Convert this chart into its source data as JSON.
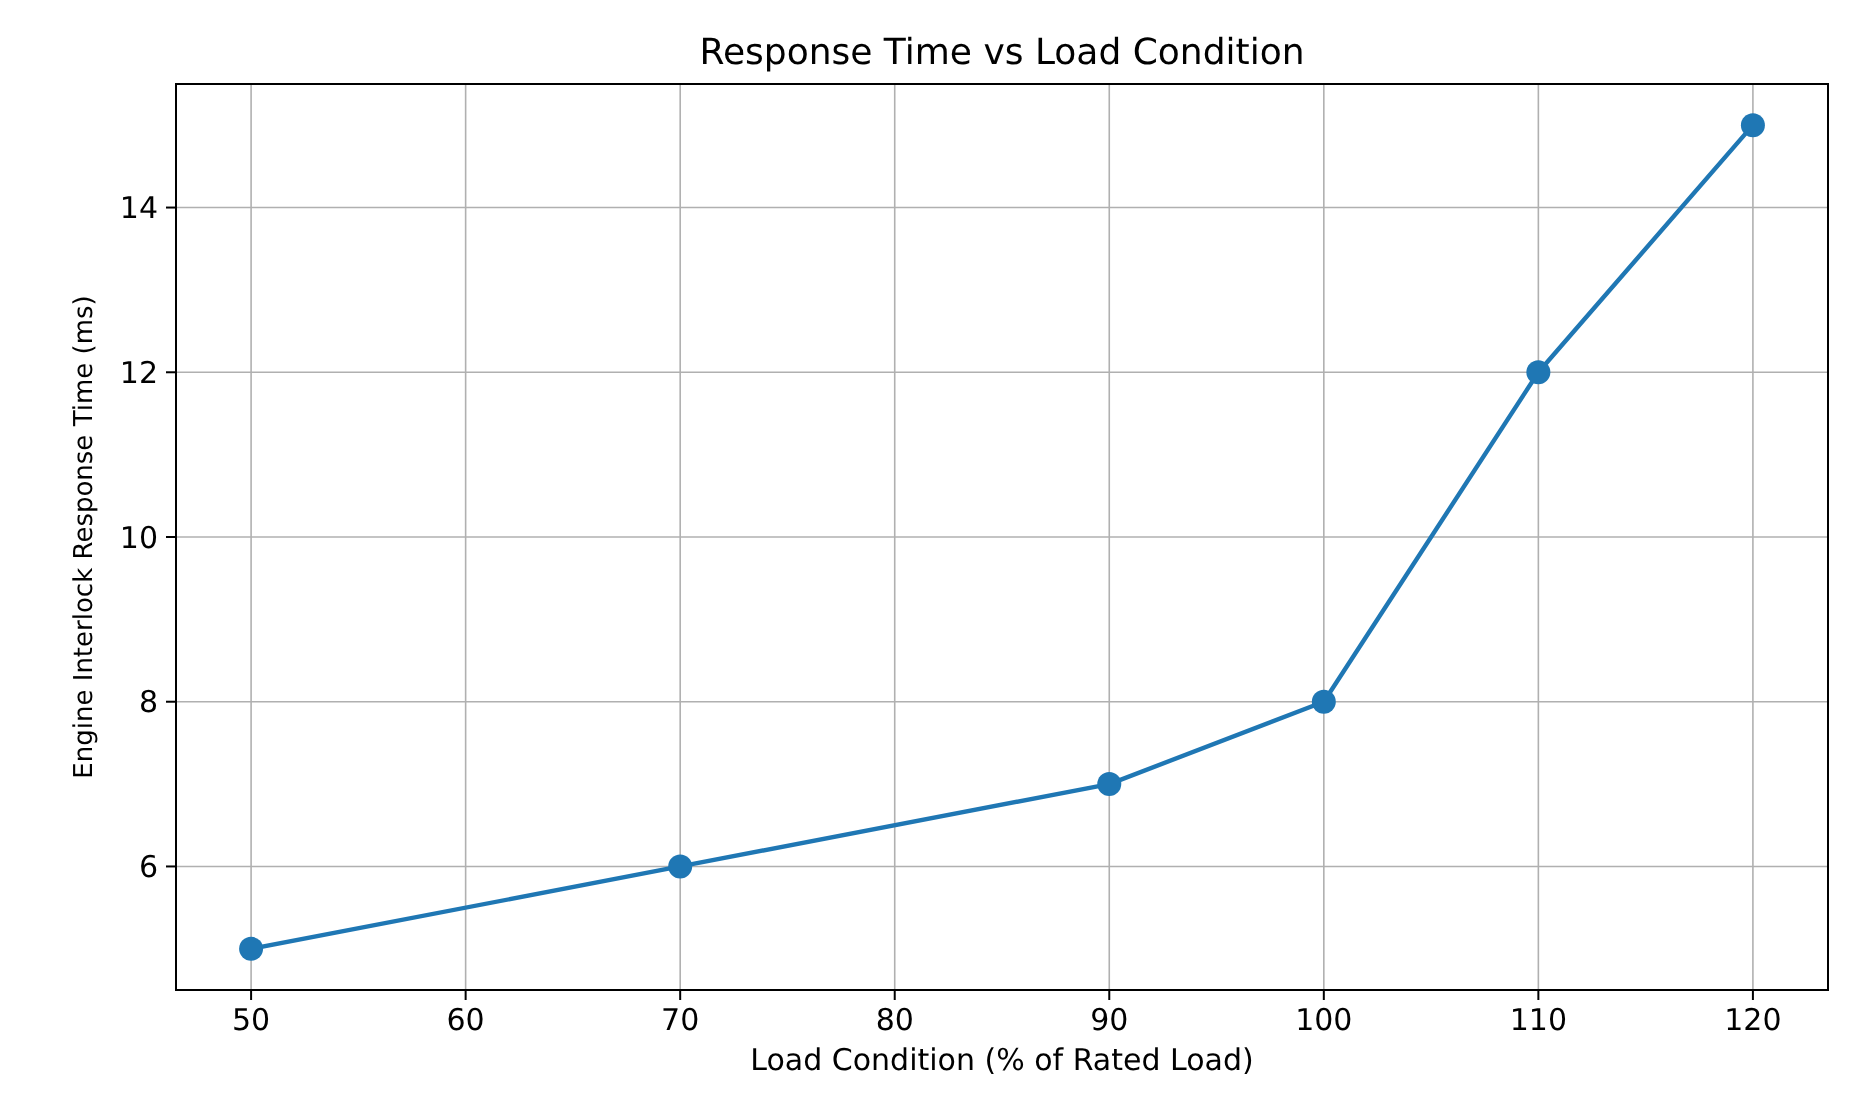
{
  "chart_data": {
    "type": "line",
    "title": "Response Time vs Load Condition",
    "xlabel": "Load Condition (% of Rated Load)",
    "ylabel": "Engine Interlock Response Time (ms)",
    "x": [
      50,
      70,
      90,
      100,
      110,
      120
    ],
    "series": [
      {
        "color": "#1f77b4",
        "values": [
          5,
          6,
          7,
          8,
          12,
          15
        ]
      }
    ],
    "xlim": [
      46.5,
      123.5
    ],
    "xticks": [
      50,
      60,
      70,
      80,
      90,
      100,
      110,
      120
    ],
    "ylim": [
      4.5,
      15.5
    ],
    "yticks": [
      6,
      8,
      10,
      12,
      14
    ],
    "grid": true,
    "marker": "circle",
    "line_style": "solid"
  }
}
